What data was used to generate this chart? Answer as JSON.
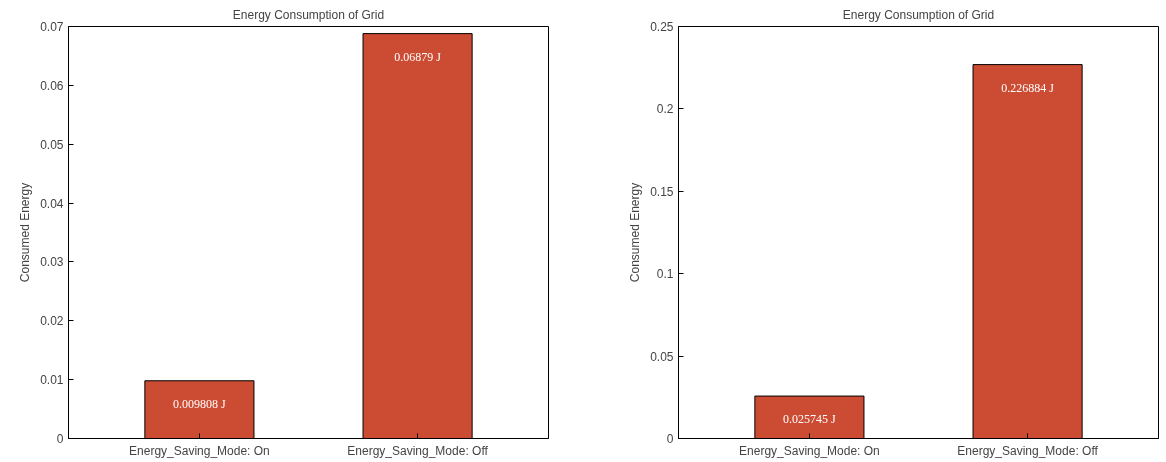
{
  "chart_data": [
    {
      "type": "bar",
      "title": "Energy Consumption of Grid",
      "ylabel": "Consumed Energy",
      "categories": [
        "Energy_Saving_Mode: On",
        "Energy_Saving_Mode: Off"
      ],
      "values": [
        0.009808,
        0.06879
      ],
      "value_labels": [
        "0.009808 J",
        "0.06879 J"
      ],
      "color": "#cc4c33",
      "ylim": [
        0,
        0.07
      ],
      "yticks": [
        0,
        0.01,
        0.02,
        0.03,
        0.04,
        0.05,
        0.06,
        0.07
      ]
    },
    {
      "type": "bar",
      "title": "Energy Consumption of Grid",
      "ylabel": "Consumed Energy",
      "categories": [
        "Energy_Saving_Mode: On",
        "Energy_Saving_Mode: Off"
      ],
      "values": [
        0.025745,
        0.226884
      ],
      "value_labels": [
        "0.025745 J",
        "0.226884 J"
      ],
      "color": "#cc4c33",
      "ylim": [
        0,
        0.25
      ],
      "yticks": [
        0,
        0.05,
        0.1,
        0.15,
        0.2,
        0.25
      ]
    }
  ]
}
